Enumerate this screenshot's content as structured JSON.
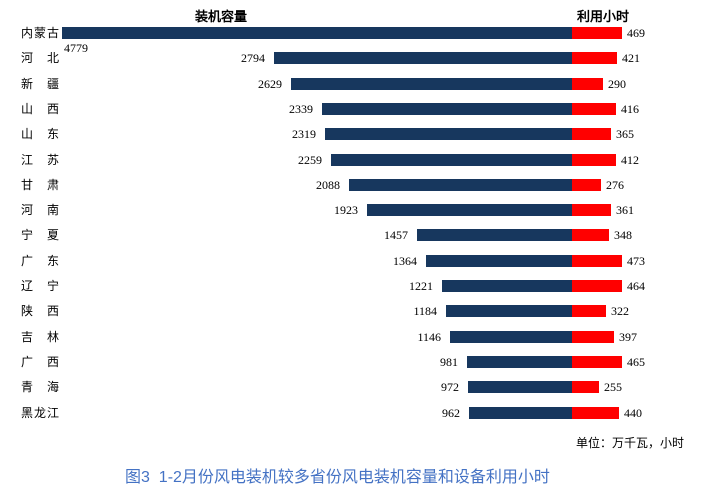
{
  "chart_data": {
    "type": "bar",
    "variant": "diverging-horizontal",
    "left_title": "装机容量",
    "right_title": "利用小时",
    "unit_note": "单位：万千瓦，小时",
    "caption": "图3  1-2月份风电装机较多省份风电装机容量和设备利用小时",
    "categories": [
      "内蒙古",
      "河北",
      "新疆",
      "山西",
      "山东",
      "江苏",
      "甘肃",
      "河南",
      "宁夏",
      "广东",
      "辽宁",
      "陕西",
      "吉林",
      "广西",
      "青海",
      "黑龙江"
    ],
    "series": [
      {
        "name": "装机容量",
        "color": "#17375E",
        "values": [
          4779,
          2794,
          2629,
          2339,
          2319,
          2259,
          2088,
          1923,
          1457,
          1364,
          1221,
          1184,
          1146,
          981,
          972,
          962
        ]
      },
      {
        "name": "利用小时",
        "color": "#FF0000",
        "values": [
          469,
          421,
          290,
          416,
          365,
          412,
          276,
          361,
          348,
          473,
          464,
          322,
          397,
          465,
          255,
          440
        ]
      }
    ],
    "value_labels": "shown at bar ends",
    "legend_position": "titles above each side",
    "grid": false
  },
  "colors": {
    "capacity_bar": "#17375E",
    "hours_bar": "#FF0000",
    "caption_text": "#4472C4",
    "background": "#FFFFFF"
  }
}
